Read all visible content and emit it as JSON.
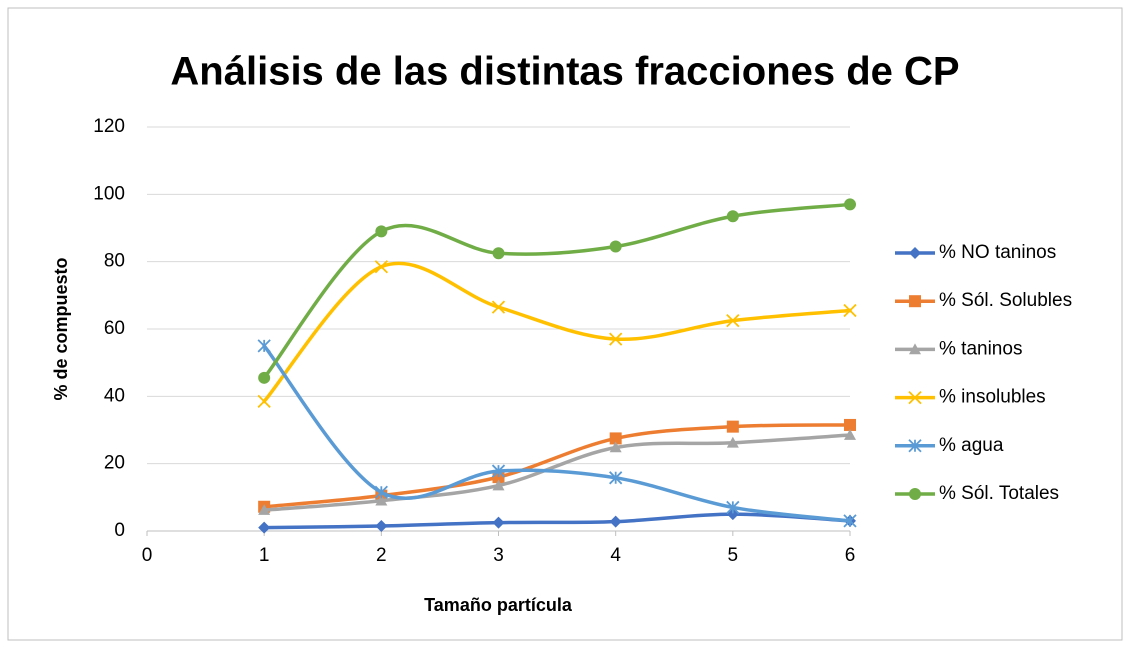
{
  "chart_data": {
    "type": "line",
    "smooth": true,
    "title": "Análisis de las distintas fracciones de CP",
    "x_label": "Tamaño partícula",
    "y_label": "% de compuesto",
    "x": [
      1,
      2,
      3,
      4,
      5,
      6
    ],
    "xlim": [
      0,
      6
    ],
    "xticks": [
      0,
      1,
      2,
      3,
      4,
      5,
      6
    ],
    "ylim": [
      0,
      120
    ],
    "yticks": [
      0,
      20,
      40,
      60,
      80,
      100,
      120
    ],
    "grid": true,
    "legend": "right",
    "series": [
      {
        "name": "% NO taninos",
        "color": "#4472c4",
        "marker": "diamond",
        "values": [
          1,
          1.5,
          2.5,
          2.8,
          5,
          3
        ]
      },
      {
        "name": "% Sól. Solubles",
        "color": "#ed7d31",
        "marker": "square",
        "values": [
          7.2,
          10.5,
          16,
          27.5,
          31,
          31.5
        ]
      },
      {
        "name": "% taninos",
        "color": "#a5a5a5",
        "marker": "triangle",
        "values": [
          6.2,
          9,
          13.5,
          24.8,
          26.2,
          28.5
        ]
      },
      {
        "name": "% insolubles",
        "color": "#ffc000",
        "marker": "x",
        "values": [
          38.5,
          78.5,
          66.5,
          57,
          62.5,
          65.5
        ]
      },
      {
        "name": "% agua",
        "color": "#5b9bd5",
        "marker": "star",
        "values": [
          55,
          11.5,
          17.8,
          15.8,
          7,
          3
        ]
      },
      {
        "name": "% Sól. Totales",
        "color": "#70ad47",
        "marker": "circle",
        "values": [
          45.5,
          89,
          82.5,
          84.5,
          93.5,
          97
        ]
      }
    ]
  }
}
